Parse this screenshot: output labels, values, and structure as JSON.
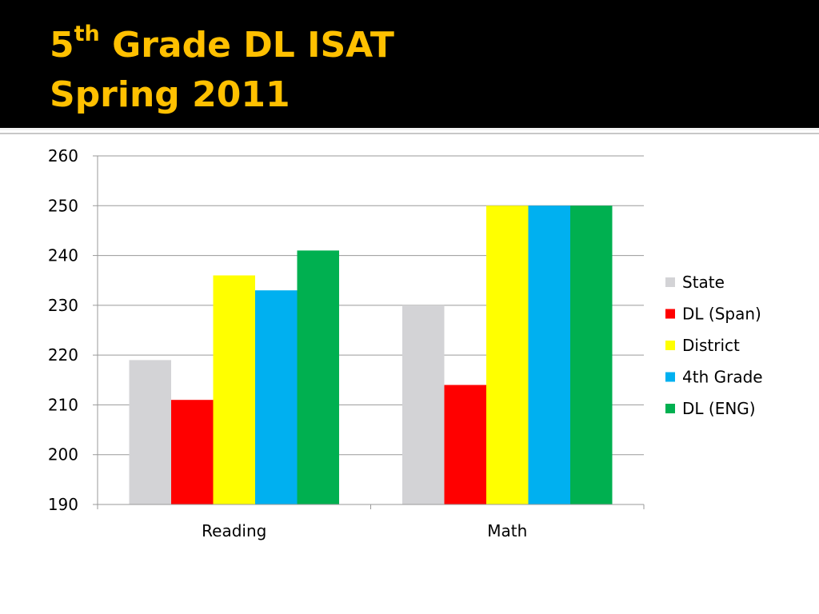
{
  "slide": {
    "title_grade": "5",
    "title_suffix": "th",
    "title_rest": " Grade DL ISAT",
    "title_line2": "Spring 2011",
    "title_color": "#ffc000",
    "background": "#000000"
  },
  "chart_data": {
    "type": "bar",
    "title": "",
    "xlabel": "",
    "ylabel": "",
    "categories": [
      "Reading",
      "Math"
    ],
    "ylim": [
      190,
      260
    ],
    "yticks": [
      190,
      200,
      210,
      220,
      230,
      240,
      250,
      260
    ],
    "grid": true,
    "legend_position": "right",
    "series": [
      {
        "name": "State",
        "color": "#d3d3d6",
        "values": [
          219,
          230
        ]
      },
      {
        "name": "DL (Span)",
        "color": "#ff0000",
        "values": [
          211,
          214
        ]
      },
      {
        "name": "District",
        "color": "#ffff00",
        "values": [
          236,
          250
        ]
      },
      {
        "name": "4th Grade",
        "color": "#00b0f0",
        "values": [
          233,
          250
        ]
      },
      {
        "name": "DL (ENG)",
        "color": "#00b050",
        "values": [
          241,
          250
        ]
      }
    ]
  }
}
